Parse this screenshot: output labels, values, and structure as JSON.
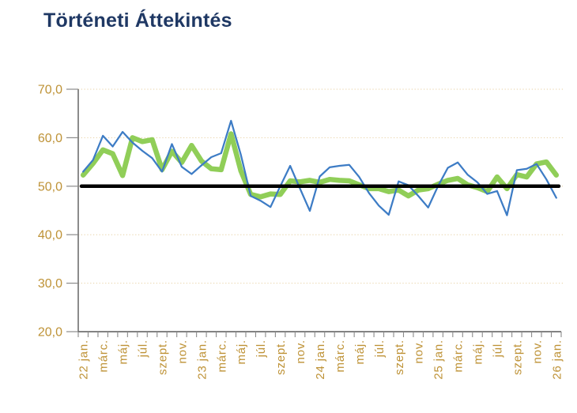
{
  "title": "Történeti Áttekintés",
  "colors": {
    "title": "#1F3864",
    "axis_label": "#BE9236",
    "gridline": "#E6CFA0",
    "axis_line": "#5A5A5A",
    "tick": "#8A8A8A",
    "blue_series": "#3D7CC5",
    "green_series": "#90CE58",
    "reference_line": "#000000",
    "background": "#FFFFFF"
  },
  "chart_data": {
    "type": "line",
    "title": "Történeti Áttekintés",
    "xlabel": "",
    "ylabel": "",
    "ylim": [
      20,
      70
    ],
    "grid": "horizontal-dotted",
    "legend_position": "none",
    "y_tick_values": [
      20,
      30,
      40,
      50,
      60,
      70
    ],
    "y_tick_labels": [
      "20,0",
      "30,0",
      "40,0",
      "50,0",
      "60,0",
      "70,0"
    ],
    "x_label_every": 2,
    "x_tick_labels": [
      "22 jan.",
      "márc.",
      "máj.",
      "júl.",
      "szept.",
      "nov.",
      "23 jan.",
      "márc.",
      "máj.",
      "júl.",
      "szept.",
      "nov.",
      "24 jan.",
      "márc.",
      "máj.",
      "júl.",
      "szept.",
      "nov.",
      "25 jan.",
      "márc.",
      "máj.",
      "júl.",
      "szept.",
      "nov.",
      "26 jan."
    ],
    "reference_line": {
      "value": 50.0
    },
    "series": [
      {
        "name": "green-thick-line",
        "color_key": "green_series",
        "stroke_width": 6.5,
        "values": [
          52.3,
          54.7,
          57.5,
          56.7,
          52.2,
          60.0,
          59.2,
          59.6,
          53.4,
          57.2,
          54.9,
          58.4,
          55.2,
          53.6,
          53.4,
          60.8,
          53.2,
          48.3,
          47.8,
          48.4,
          48.3,
          51.1,
          50.9,
          51.2,
          50.8,
          51.4,
          51.2,
          51.1,
          50.3,
          49.5,
          49.5,
          48.9,
          49.2,
          48.0,
          49.2,
          49.5,
          50.4,
          51.2,
          51.6,
          50.3,
          49.7,
          48.9,
          51.9,
          49.5,
          52.4,
          51.9,
          54.6,
          55.0,
          52.3
        ]
      },
      {
        "name": "blue-thin-line",
        "color_key": "blue_series",
        "stroke_width": 2.25,
        "values": [
          53.0,
          55.4,
          60.4,
          58.2,
          61.2,
          59.0,
          57.3,
          55.8,
          53.0,
          58.7,
          54.0,
          52.5,
          54.3,
          56.0,
          56.8,
          63.5,
          56.5,
          48.0,
          47.0,
          45.7,
          50.0,
          54.2,
          49.5,
          44.9,
          52.0,
          53.9,
          54.2,
          54.4,
          51.9,
          48.6,
          46.0,
          44.1,
          51.0,
          50.2,
          48.0,
          45.6,
          50.0,
          53.8,
          54.9,
          52.4,
          50.8,
          48.4,
          49.0,
          44.0,
          53.3,
          53.6,
          54.6,
          51.4,
          47.6
        ]
      }
    ]
  }
}
